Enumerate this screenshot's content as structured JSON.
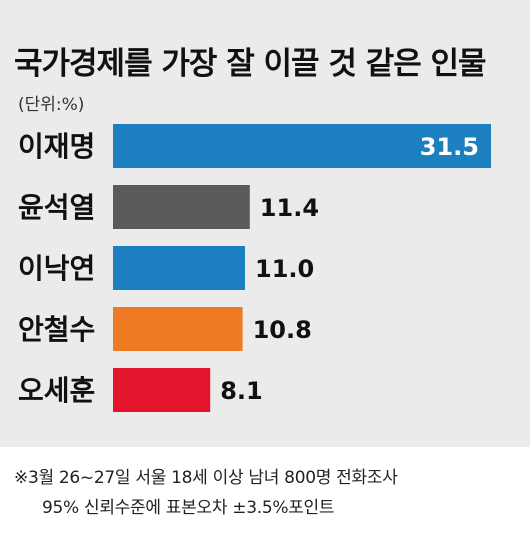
{
  "chart_data": {
    "type": "bar",
    "orientation": "horizontal",
    "title": "국가경제를 가장 잘 이끌 것 같은 인물",
    "unit_label": "(단위:%)",
    "categories": [
      "이재명",
      "윤석열",
      "이낙연",
      "안철수",
      "오세훈"
    ],
    "values": [
      31.5,
      11.4,
      11.0,
      10.8,
      8.1
    ],
    "value_labels": [
      "31.5",
      "11.4",
      "11.0",
      "10.8",
      "8.1"
    ],
    "colors": [
      "#1b7fc0",
      "#5a5a5a",
      "#1b7fc0",
      "#ee7a23",
      "#e3152d"
    ],
    "xlim": [
      0,
      31.5
    ],
    "grid": false,
    "legend": "none"
  },
  "footnote": {
    "line1": "※3월 26~27일 서울 18세 이상 남녀 800명 전화조사",
    "line2": "95% 신뢰수준에 표본오차 ±3.5%포인트"
  }
}
